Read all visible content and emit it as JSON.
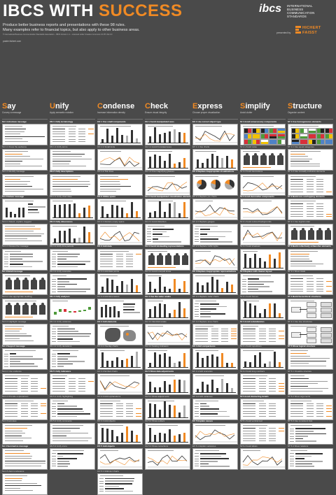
{
  "header": {
    "title_part1": "IBCS WITH",
    "title_part2": "SUCCESS",
    "subtitle_line1": "Produce better business reports and presentations with these 98 rules.",
    "subtitle_line2": "Many examples refer to financial topics, but also apply to other business areas.",
    "fine_print": "© International Business Communication Standards Association – IBCS Version 1.1 – Licensed under Creative Commons CC BY-SA 4.0",
    "url": "poster.hichert.com"
  },
  "brand": {
    "logo_mark": "ibcs",
    "logo_text_lines": [
      "INTERNATIONAL",
      "BUSINESS",
      "COMMUNICATION",
      "STANDARDS"
    ],
    "presented_by": "presented by",
    "partner_lines": [
      "HICHERT",
      "FAISST"
    ]
  },
  "colors": {
    "background": "#4a4a4a",
    "accent": "#f08a24",
    "text": "#ffffff"
  },
  "columns": [
    {
      "first": "S",
      "rest": "ay",
      "description": "Convey a message",
      "cells": [
        {
          "label": "SA 1  Introduce message",
          "strong": true,
          "kind": "text"
        },
        {
          "label": "SA 1.1  Know the audience",
          "strong": false,
          "kind": "text"
        },
        {
          "label": "SA 1.3  Identify message",
          "strong": false,
          "kind": "text"
        },
        {
          "label": "SA 2  Deliver message",
          "strong": true,
          "kind": "bars"
        },
        {
          "label": "SA 2.1  Detect, explain, suggest",
          "strong": false,
          "kind": "text"
        },
        {
          "label": "SA 2.3  Review the message",
          "strong": false,
          "kind": "hbars"
        },
        {
          "label": "SA 3  Detail message",
          "strong": true,
          "kind": "pictos"
        },
        {
          "label": "SA 3.1  Use appropriate wording",
          "strong": false,
          "kind": "pictos"
        },
        {
          "label": "SA 3.3  Highlight message",
          "strong": false,
          "kind": "text"
        },
        {
          "label": "SA 4  Support message",
          "strong": true,
          "kind": "hbars"
        },
        {
          "label": "SA 4.1  Use evidence",
          "strong": false,
          "kind": "table"
        },
        {
          "label": "SA 4.3  Provide explanations",
          "strong": false,
          "kind": "table"
        },
        {
          "label": "SA 4  Footnotes",
          "strong": false,
          "kind": "text"
        },
        {
          "label": "SA 4  Summarize message",
          "strong": true,
          "kind": "text"
        },
        {
          "label": "SA 4.5  Add conclusions",
          "strong": false,
          "kind": "text"
        }
      ]
    },
    {
      "first": "U",
      "rest": "nify",
      "description": "Apply semantic notation",
      "cells": [
        {
          "label": "UN 1  Unify terminology",
          "strong": true,
          "kind": "table"
        },
        {
          "label": "UN 1.1  Unify terms",
          "strong": false,
          "kind": "text"
        },
        {
          "label": "UN 2  Unify descriptions",
          "strong": true,
          "kind": "text"
        },
        {
          "label": "UN 2.1  Unify chart titles",
          "strong": false,
          "kind": "columns"
        },
        {
          "label": "UN 3  Unify dimensions",
          "strong": true,
          "kind": "columns"
        },
        {
          "label": "UN 3.1  Unify time periods",
          "strong": false,
          "kind": "hbars"
        },
        {
          "label": "UN 3.3  Unify scenarios",
          "strong": false,
          "kind": "hbars"
        },
        {
          "label": "UN 4  Unify analyses",
          "strong": true,
          "kind": "waterfall"
        },
        {
          "label": "UN 4.1  Unify variances",
          "strong": false,
          "kind": "hbars"
        },
        {
          "label": "UN 4.2  Unify deviations",
          "strong": false,
          "kind": "hbars"
        },
        {
          "label": "UN 5  Unify indicators",
          "strong": true,
          "kind": "table"
        },
        {
          "label": "UN 5.1  Unify highlighting",
          "strong": false,
          "kind": "hbars"
        },
        {
          "label": "UN 5.2  Unify comments",
          "strong": false,
          "kind": "text"
        },
        {
          "label": "UN 5.3  Unify icons",
          "strong": false,
          "kind": "hbars"
        }
      ]
    },
    {
      "first": "C",
      "rest": "ondense",
      "description": "Increase information density",
      "cells": [
        {
          "label": "CO 1  Use small components",
          "strong": true,
          "kind": "columns"
        },
        {
          "label": "CO 1.1  Small fonts",
          "strong": false,
          "kind": "lines"
        },
        {
          "label": "CO 1.2  Thin lines",
          "strong": false,
          "kind": "text"
        },
        {
          "label": "CO 2  Utilize space",
          "strong": true,
          "kind": "columns"
        },
        {
          "label": "CO 2.1  Reduce empty space",
          "strong": false,
          "kind": "lines"
        },
        {
          "label": "CO 3  Add data",
          "strong": true,
          "kind": "table"
        },
        {
          "label": "CO 3.1  Add data points",
          "strong": false,
          "kind": "columns"
        },
        {
          "label": "CO 3.2  Add dimensions",
          "strong": false,
          "kind": "mixed"
        },
        {
          "label": "CO 4  Add elements",
          "strong": true,
          "kind": "map"
        },
        {
          "label": "CO 4.1  Overlay charts",
          "strong": false,
          "kind": "columns"
        },
        {
          "label": "CO 4.2  Embed charts",
          "strong": false,
          "kind": "lines"
        },
        {
          "label": "CO 4.3  Add explanations",
          "strong": false,
          "kind": "table"
        },
        {
          "label": "CO 4.4  Add objects",
          "strong": false,
          "kind": "columns"
        },
        {
          "label": "CO 5  Add objects",
          "strong": true,
          "kind": "lines"
        },
        {
          "label": "CO 5.1  Multi-tier charts",
          "strong": false,
          "kind": "hbars"
        }
      ]
    },
    {
      "first": "C",
      "rest": "heck",
      "description": "Ensure visual integrity",
      "cells": [
        {
          "label": "CH 1  Avoid manipulated axes",
          "strong": true,
          "kind": "columns"
        },
        {
          "label": "CH 1.1  Avoid truncated axes",
          "strong": false,
          "kind": "columns"
        },
        {
          "label": "CH 1.2  Use magnifying glasses",
          "strong": false,
          "kind": "lines"
        },
        {
          "label": "CH 2  Avoid manipulated visualization elements",
          "strong": true,
          "kind": "columns"
        },
        {
          "label": "CH 2.1  Avoid distortion",
          "strong": false,
          "kind": "hbars"
        },
        {
          "label": "CH 3  Avoid misleading representations",
          "strong": true,
          "kind": "pictos"
        },
        {
          "label": "CH 3.1  Avoid unequal areas",
          "strong": false,
          "kind": "columns"
        },
        {
          "label": "CH 4  Use the same scales",
          "strong": true,
          "kind": "columns"
        },
        {
          "label": "CH 4.1  Identical scales",
          "strong": false,
          "kind": "lines"
        },
        {
          "label": "CH 4.2  Scaling indicators",
          "strong": false,
          "kind": "columns"
        },
        {
          "label": "CH 5  Show data adjustments",
          "strong": true,
          "kind": "columns"
        },
        {
          "label": "CH 5.1  Show adjustments",
          "strong": false,
          "kind": "columns"
        },
        {
          "label": "CH 5.2  Show outliers",
          "strong": false,
          "kind": "columns"
        },
        {
          "label": "CH 5.3  Show corrections",
          "strong": false,
          "kind": "lines"
        }
      ]
    },
    {
      "first": "E",
      "rest": "xpress",
      "description": "Choose proper visualization",
      "cells": [
        {
          "label": "EX 1  Use correct object type",
          "strong": true,
          "kind": "lines"
        },
        {
          "label": "EX 1.1  Use charts",
          "strong": false,
          "kind": "columns"
        },
        {
          "label": "EX 2  Replace inappropriate visualizations",
          "strong": true,
          "kind": "pies"
        },
        {
          "label": "EX 2.1  Replace pie charts",
          "strong": false,
          "kind": "lines"
        },
        {
          "label": "EX 2.2  Replace gauges",
          "strong": false,
          "kind": "hbars"
        },
        {
          "label": "EX 2.3  Replace traffic lights",
          "strong": false,
          "kind": "lines"
        },
        {
          "label": "EX 3  Replace inappropriate representations",
          "strong": true,
          "kind": "columns"
        },
        {
          "label": "EX 3.1  Replace radar charts",
          "strong": false,
          "kind": "hbars"
        },
        {
          "label": "EX 3.2  Replace area charts",
          "strong": false,
          "kind": "table"
        },
        {
          "label": "EX 4  Add comparisons",
          "strong": true,
          "kind": "columns"
        },
        {
          "label": "EX 4.1  Add scenarios",
          "strong": false,
          "kind": "columns"
        },
        {
          "label": "EX 4.2  Add variances",
          "strong": false,
          "kind": "hbars"
        },
        {
          "label": "EX 5  Explain causes",
          "strong": true,
          "kind": "lines"
        },
        {
          "label": "EX 5.1  Explain variances",
          "strong": false,
          "kind": "hbars"
        }
      ]
    },
    {
      "first": "S",
      "rest": "implify",
      "description": "Avoid clutter",
      "cells": [
        {
          "label": "SI 1  Avoid unnecessary components",
          "strong": true,
          "kind": "flags"
        },
        {
          "label": "SI 1.1  Avoid noise",
          "strong": false,
          "kind": "pictos"
        },
        {
          "label": "SI 1.2  Avoid decorations",
          "strong": false,
          "kind": "lines"
        },
        {
          "label": "SI 2  Avoid decorative components",
          "strong": true,
          "kind": "lines"
        },
        {
          "label": "SI 2.1  Avoid colored backgrounds",
          "strong": false,
          "kind": "lines"
        },
        {
          "label": "SI 2.2  Avoid shadows",
          "strong": false,
          "kind": "columns"
        },
        {
          "label": "SI 3  Replace with cleaner layout",
          "strong": true,
          "kind": "hbars"
        },
        {
          "label": "SI 3.1  Avoid frames",
          "strong": false,
          "kind": "columns"
        },
        {
          "label": "SI 4  Avoid redundancies",
          "strong": true,
          "kind": "table"
        },
        {
          "label": "SI 4.1  Avoid repetitions",
          "strong": false,
          "kind": "columns"
        },
        {
          "label": "SI 4.2  Avoid long numbers",
          "strong": false,
          "kind": "table"
        },
        {
          "label": "SI 5  Avoid distracting details",
          "strong": true,
          "kind": "table"
        },
        {
          "label": "SI 5.1  Avoid vertical text",
          "strong": false,
          "kind": "table"
        },
        {
          "label": "SI 5.2  Avoid labels",
          "strong": false,
          "kind": "lines"
        }
      ]
    },
    {
      "first": "S",
      "rest": "tructure",
      "description": "Organize content",
      "cells": [
        {
          "label": "ST 1  Use homogeneous elements",
          "strong": true,
          "kind": "flags"
        },
        {
          "label": "ST 1.1  Use equal categories",
          "strong": false,
          "kind": "text"
        },
        {
          "label": "ST 1.2  Use mutually exclusive elements",
          "strong": false,
          "kind": "table"
        },
        {
          "label": "ST 2  Build non-overlapping elements",
          "strong": true,
          "kind": "table"
        },
        {
          "label": "ST 2.1  Use logical order",
          "strong": false,
          "kind": "pictos"
        },
        {
          "label": "ST 3  Build collectively exhaustive elements",
          "strong": true,
          "kind": "text"
        },
        {
          "label": "ST 3.1  Show totals",
          "strong": false,
          "kind": "table"
        },
        {
          "label": "ST 4  Build hierarchical structures",
          "strong": true,
          "kind": "tree"
        },
        {
          "label": "ST 4.1  Use tree structures",
          "strong": false,
          "kind": "tree"
        },
        {
          "label": "ST 5  Show logical structure",
          "strong": true,
          "kind": "text"
        },
        {
          "label": "ST 5.1  Visualize structure",
          "strong": false,
          "kind": "text"
        },
        {
          "label": "ST 5.2  Show arguments",
          "strong": false,
          "kind": "table"
        },
        {
          "label": "ST 5.3  Use consistent lists",
          "strong": false,
          "kind": "hbars"
        },
        {
          "label": "ST 5.4  Show relations",
          "strong": false,
          "kind": "hbars"
        }
      ]
    }
  ]
}
